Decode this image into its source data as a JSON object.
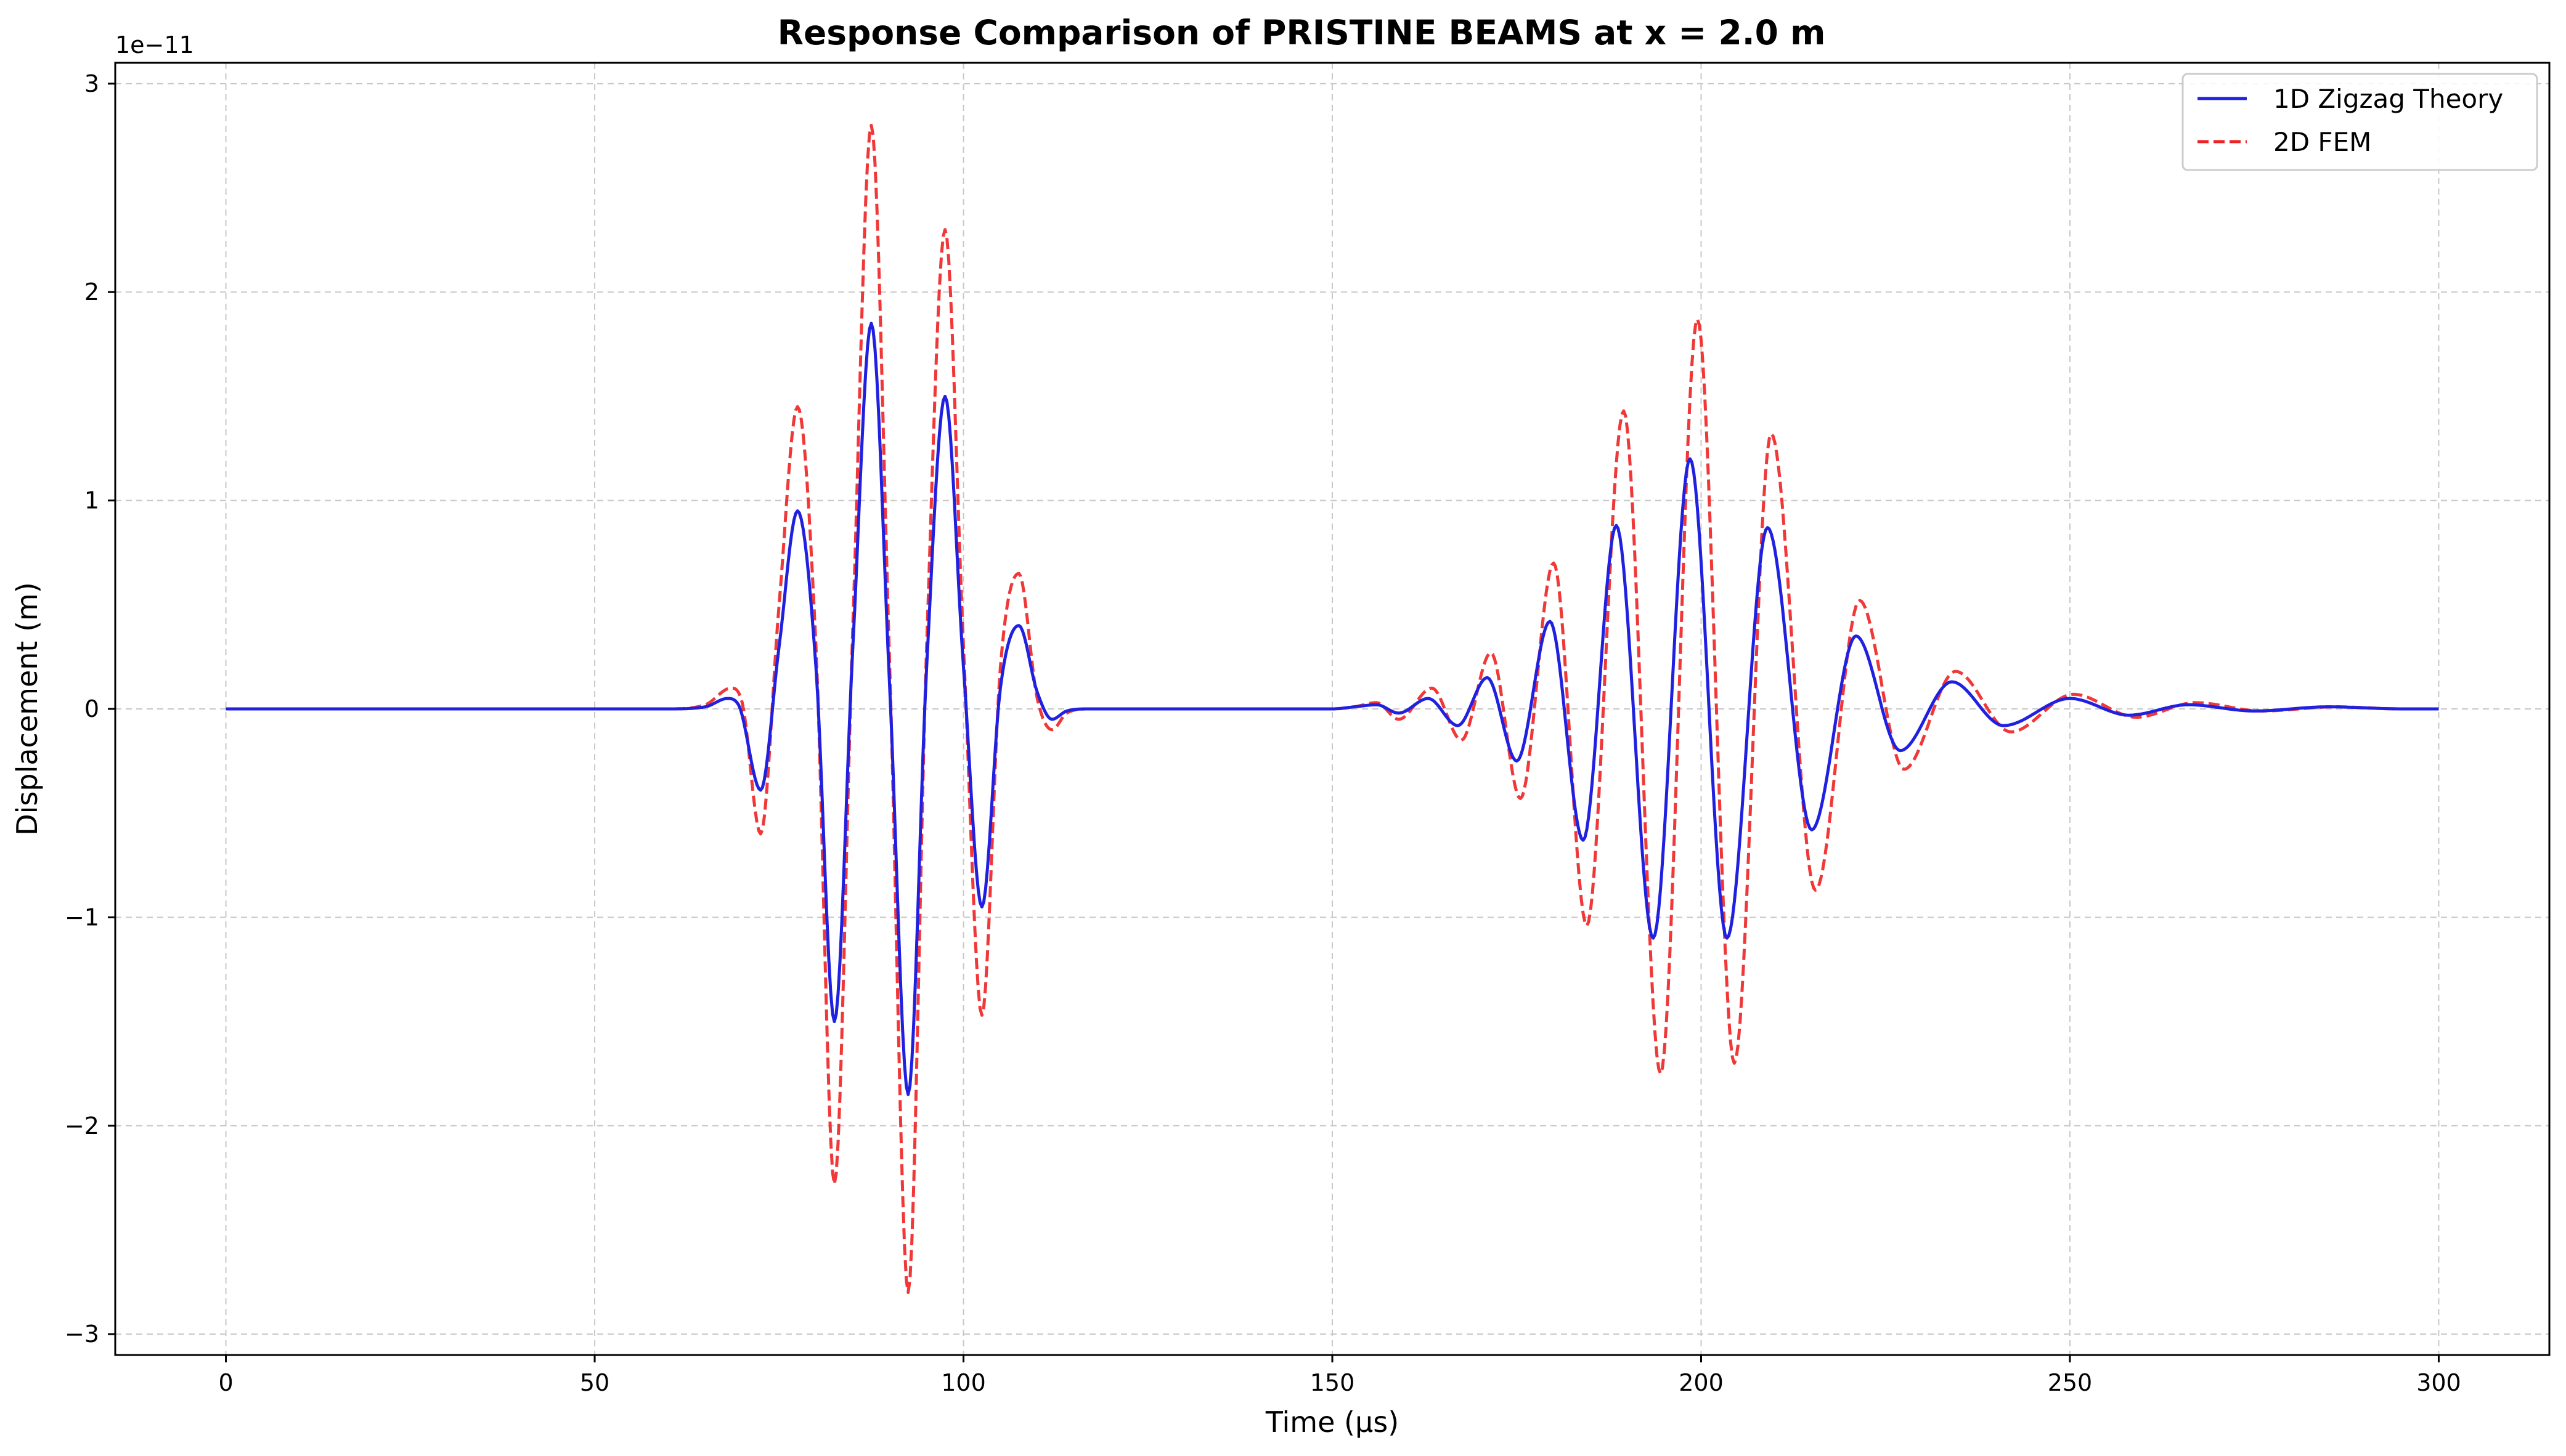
{
  "chart_data": {
    "type": "line",
    "title": "Response Comparison of PRISTINE BEAMS at x = 2.0 m",
    "xlabel": "Time (μs)",
    "ylabel": "Displacement (m)",
    "y_offset_text": "1e−11",
    "xlim": [
      -15,
      315
    ],
    "ylim": [
      -3.1,
      3.1
    ],
    "x_ticks": [
      0,
      50,
      100,
      150,
      200,
      250,
      300
    ],
    "x_tick_labels": [
      "0",
      "50",
      "100",
      "150",
      "200",
      "250",
      "300"
    ],
    "y_ticks": [
      -3,
      -2,
      -1,
      0,
      1,
      2,
      3
    ],
    "y_tick_labels": [
      "−3",
      "−2",
      "−1",
      "0",
      "1",
      "2",
      "3"
    ],
    "grid": true,
    "legend_position": "top-right",
    "series": [
      {
        "name": "1D Zigzag Theory",
        "color": "#2020e0",
        "style": "solid",
        "points": [
          [
            0,
            0
          ],
          [
            60,
            0
          ],
          [
            65,
            0.01
          ],
          [
            68,
            0.05
          ],
          [
            69.5,
            0.02
          ],
          [
            72.5,
            -0.39
          ],
          [
            75,
            0.3
          ],
          [
            77.5,
            0.95
          ],
          [
            80,
            0.2
          ],
          [
            82.5,
            -1.5
          ],
          [
            85,
            0.3
          ],
          [
            87.5,
            1.85
          ],
          [
            90,
            0.1
          ],
          [
            92.5,
            -1.85
          ],
          [
            95,
            0.2
          ],
          [
            97.5,
            1.5
          ],
          [
            100,
            0.2
          ],
          [
            102.5,
            -0.95
          ],
          [
            105,
            0.1
          ],
          [
            107.5,
            0.4
          ],
          [
            110,
            0.08
          ],
          [
            112,
            -0.05
          ],
          [
            114,
            -0.01
          ],
          [
            117,
            0
          ],
          [
            150,
            0
          ],
          [
            153,
            0.01
          ],
          [
            156,
            0.02
          ],
          [
            159,
            -0.02
          ],
          [
            163,
            0.05
          ],
          [
            167,
            -0.08
          ],
          [
            171,
            0.15
          ],
          [
            175,
            -0.25
          ],
          [
            179.5,
            0.42
          ],
          [
            184,
            -0.63
          ],
          [
            188.5,
            0.88
          ],
          [
            193.5,
            -1.1
          ],
          [
            198.5,
            1.2
          ],
          [
            203.5,
            -1.1
          ],
          [
            209,
            0.87
          ],
          [
            215,
            -0.58
          ],
          [
            221,
            0.35
          ],
          [
            227,
            -0.2
          ],
          [
            234,
            0.13
          ],
          [
            241,
            -0.08
          ],
          [
            250,
            0.05
          ],
          [
            258,
            -0.03
          ],
          [
            266,
            0.02
          ],
          [
            275,
            -0.01
          ],
          [
            285,
            0.01
          ],
          [
            295,
            0
          ],
          [
            300,
            0
          ]
        ]
      },
      {
        "name": "2D FEM",
        "color": "#ee2222",
        "style": "dashed",
        "points": [
          [
            0,
            0
          ],
          [
            60,
            0
          ],
          [
            65,
            0.02
          ],
          [
            68.5,
            0.1
          ],
          [
            70,
            0.03
          ],
          [
            72.5,
            -0.6
          ],
          [
            75,
            0.5
          ],
          [
            77.5,
            1.45
          ],
          [
            80,
            0.3
          ],
          [
            82.5,
            -2.28
          ],
          [
            85,
            0.4
          ],
          [
            87.5,
            2.8
          ],
          [
            90,
            0.2
          ],
          [
            92.5,
            -2.8
          ],
          [
            95,
            0.3
          ],
          [
            97.5,
            2.3
          ],
          [
            100,
            0.3
          ],
          [
            102.5,
            -1.47
          ],
          [
            105,
            0.2
          ],
          [
            107.5,
            0.65
          ],
          [
            110,
            0.05
          ],
          [
            112,
            -0.1
          ],
          [
            114,
            -0.02
          ],
          [
            117,
            0
          ],
          [
            150,
            0
          ],
          [
            153,
            0.01
          ],
          [
            156,
            0.03
          ],
          [
            159,
            -0.05
          ],
          [
            163.5,
            0.1
          ],
          [
            167.5,
            -0.15
          ],
          [
            171.5,
            0.27
          ],
          [
            175.5,
            -0.43
          ],
          [
            180,
            0.7
          ],
          [
            184.5,
            -1.04
          ],
          [
            189.5,
            1.43
          ],
          [
            194.5,
            -1.75
          ],
          [
            199.5,
            1.87
          ],
          [
            204.5,
            -1.7
          ],
          [
            209.5,
            1.32
          ],
          [
            215.5,
            -0.87
          ],
          [
            221.5,
            0.52
          ],
          [
            227.5,
            -0.29
          ],
          [
            234.5,
            0.18
          ],
          [
            242,
            -0.11
          ],
          [
            250.5,
            0.07
          ],
          [
            259,
            -0.04
          ],
          [
            267,
            0.03
          ],
          [
            276,
            -0.01
          ],
          [
            286,
            0.01
          ],
          [
            295,
            0
          ],
          [
            300,
            0
          ]
        ]
      }
    ]
  }
}
